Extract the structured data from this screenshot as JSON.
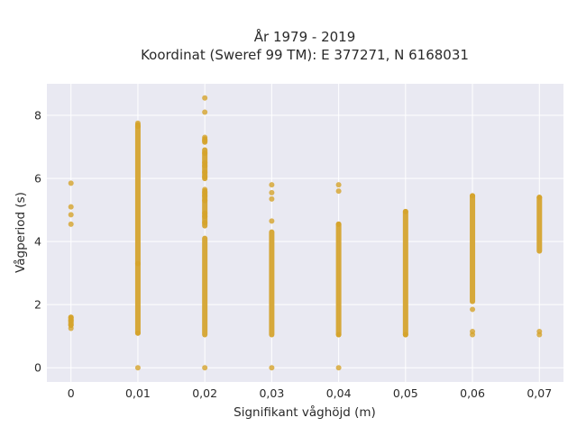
{
  "chart_data": {
    "type": "scatter",
    "title_lines": [
      "År 1979 - 2019",
      "Koordinat (Sweref 99 TM): E 377271, N 6168031"
    ],
    "xlabel": "Signifikant våghöjd (m)",
    "ylabel": "Vågperiod (s)",
    "xlim": [
      -0.0036,
      0.0736
    ],
    "ylim": [
      -0.45,
      9.0
    ],
    "xticks": [
      0,
      0.01,
      0.02,
      0.03,
      0.04,
      0.05,
      0.06,
      0.07
    ],
    "xtick_labels": [
      "0",
      "0,01",
      "0,02",
      "0,03",
      "0,04",
      "0,05",
      "0,06",
      "0,07"
    ],
    "yticks": [
      0,
      2,
      4,
      6,
      8
    ],
    "ytick_labels": [
      "0",
      "2",
      "4",
      "6",
      "8"
    ],
    "grid": true,
    "marker_color": "#d4a22a",
    "background_color": "#e9e9f2",
    "columns": [
      {
        "x": 0,
        "bands": [
          [
            1.35,
            1.6
          ]
        ],
        "points": [
          5.85,
          5.1,
          4.85,
          4.55,
          1.25,
          1.35,
          1.5,
          1.6
        ]
      },
      {
        "x": 0.01,
        "bands": [
          [
            1.1,
            7.7
          ]
        ],
        "points": [
          0.0,
          7.75,
          7.65,
          3.3,
          1.1
        ]
      },
      {
        "x": 0.02,
        "bands": [
          [
            1.05,
            4.1
          ],
          [
            4.5,
            5.6
          ],
          [
            6.0,
            6.9
          ],
          [
            7.15,
            7.25
          ]
        ],
        "points": [
          0.0,
          8.55,
          8.1,
          7.3,
          7.2,
          6.8,
          6.5,
          6.4,
          6.2,
          6.05,
          5.65,
          5.55,
          5.45,
          5.3,
          4.9,
          4.8,
          4.6
        ]
      },
      {
        "x": 0.03,
        "bands": [
          [
            1.05,
            4.3
          ]
        ],
        "points": [
          0.0,
          5.8,
          5.55,
          5.35,
          4.65
        ]
      },
      {
        "x": 0.04,
        "bands": [
          [
            1.05,
            4.55
          ]
        ],
        "points": [
          0.0,
          5.8,
          5.6,
          4.55,
          1.05
        ]
      },
      {
        "x": 0.05,
        "bands": [
          [
            1.05,
            4.95
          ]
        ],
        "points": [
          1.05,
          4.95
        ]
      },
      {
        "x": 0.06,
        "bands": [
          [
            2.1,
            5.45
          ]
        ],
        "points": [
          1.85,
          1.15,
          1.05,
          5.45
        ]
      },
      {
        "x": 0.07,
        "bands": [
          [
            3.7,
            5.4
          ]
        ],
        "points": [
          1.15,
          1.05,
          5.4
        ]
      }
    ]
  }
}
